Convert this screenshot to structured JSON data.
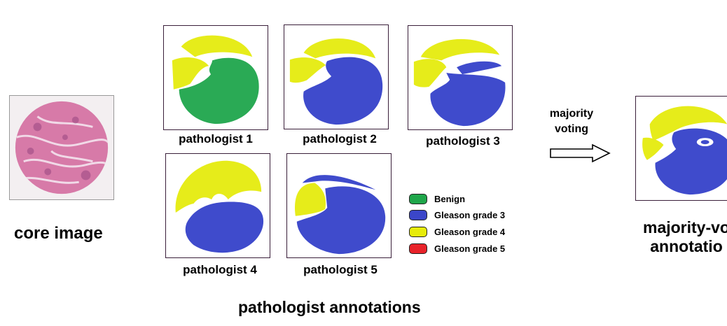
{
  "core": {
    "label": "core image"
  },
  "panels": [
    {
      "label": "pathologist 1",
      "body_color": "#2aaa55"
    },
    {
      "label": "pathologist 2",
      "body_color": "#3f4bcc"
    },
    {
      "label": "pathologist 3",
      "body_color": "#3f4bcc"
    },
    {
      "label": "pathologist 4",
      "body_color": "#3f4bcc"
    },
    {
      "label": "pathologist 5",
      "body_color": "#3f4bcc"
    }
  ],
  "section_label": "pathologist annotations",
  "legend": [
    {
      "label": "Benign",
      "color": "#1fa64a"
    },
    {
      "label": "Gleason grade 3",
      "color": "#3b46c9"
    },
    {
      "label": "Gleason grade 4",
      "color": "#e7ec0c"
    },
    {
      "label": "Gleason grade 5",
      "color": "#e8232a"
    }
  ],
  "arrow": {
    "label_line1": "majority",
    "label_line2": "voting"
  },
  "result": {
    "label_line1": "majority-vo",
    "label_line2": "annotatio"
  },
  "colors": {
    "yellow": "#e6ec1a",
    "blue": "#3f4bcc",
    "green": "#2aaa55",
    "tissue": "#d77aa8",
    "frame": "#3a1f3a"
  }
}
